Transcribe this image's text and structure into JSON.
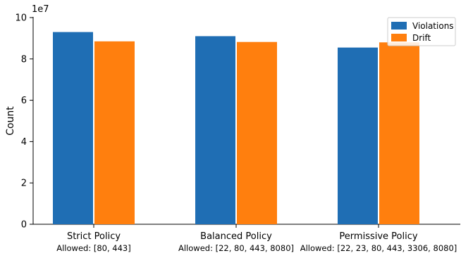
{
  "chart_data": {
    "type": "bar",
    "categories": [
      "Strict Policy",
      "Balanced Policy",
      "Permissive Policy"
    ],
    "category_sublabels": [
      "Allowed: [80, 443]",
      "Allowed: [22, 80, 443, 8080]",
      "Allowed: [22, 23, 80, 443, 3306, 8080]"
    ],
    "series": [
      {
        "name": "Violations",
        "color": "#1f6eb4",
        "values": [
          93000000,
          91000000,
          85500000
        ]
      },
      {
        "name": "Drift",
        "color": "#ff7f0e",
        "values": [
          88500000,
          88200000,
          88000000
        ]
      }
    ],
    "ylabel": "Count",
    "xlabel": "",
    "title": "",
    "ylim": [
      0,
      100000000
    ],
    "yticks": [
      0,
      2,
      4,
      6,
      8,
      10
    ],
    "scale_label": "1e7",
    "grid": false,
    "legend_position": "top-right"
  }
}
